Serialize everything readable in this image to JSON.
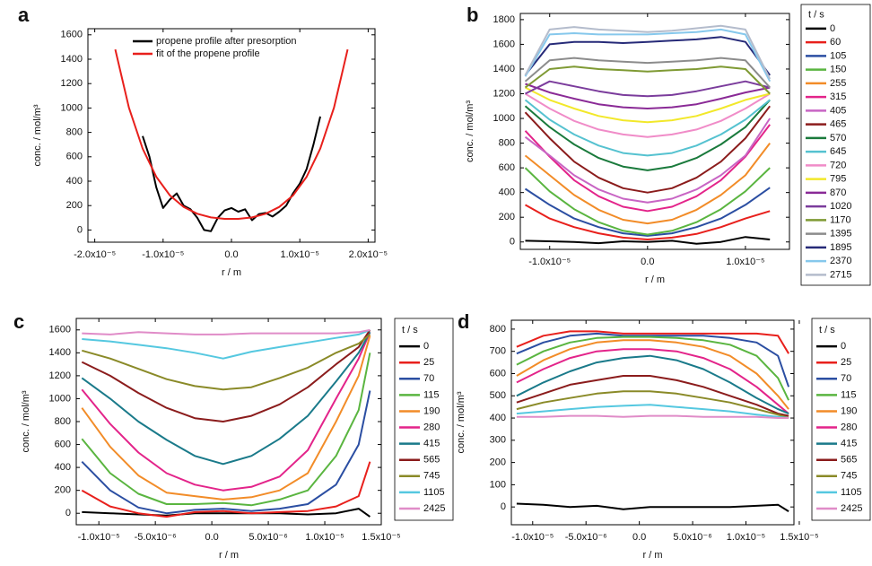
{
  "chart_data": [
    {
      "type": "line",
      "label": "a",
      "xlabel": "r / m",
      "ylabel": "conc. / mol/m³",
      "xlim": [
        -2.1e-05,
        2.1e-05
      ],
      "ylim": [
        -100,
        1650
      ],
      "xticks": [
        {
          "value": -2e-05,
          "label": "-2.0x10⁻⁵"
        },
        {
          "value": -1e-05,
          "label": "-1.0x10⁻⁵"
        },
        {
          "value": 0,
          "label": "0.0"
        },
        {
          "value": 1e-05,
          "label": "1.0x10⁻⁵"
        },
        {
          "value": 2e-05,
          "label": "2.0x10⁻⁵"
        }
      ],
      "yticks": [
        0,
        200,
        400,
        600,
        800,
        1000,
        1200,
        1400,
        1600
      ],
      "legend": "upper center",
      "series": [
        {
          "name": "propene profile after presorption",
          "color": "#000000",
          "x": [
            -1.3e-05,
            -1.2e-05,
            -1.1e-05,
            -1e-05,
            -9e-06,
            -8e-06,
            -7e-06,
            -6e-06,
            -5e-06,
            -4e-06,
            -3e-06,
            -2e-06,
            -1e-06,
            0,
            1e-06,
            2e-06,
            3e-06,
            4e-06,
            5e-06,
            6e-06,
            7e-06,
            8e-06,
            9e-06,
            1e-05,
            1.1e-05,
            1.2e-05,
            1.3e-05
          ],
          "values": [
            770,
            600,
            350,
            180,
            250,
            300,
            200,
            170,
            100,
            0,
            -10,
            100,
            160,
            180,
            150,
            170,
            80,
            130,
            140,
            110,
            150,
            200,
            300,
            380,
            500,
            700,
            930
          ]
        },
        {
          "name": "fit of the propene profile",
          "color": "#e8201c",
          "x": [
            -1.7e-05,
            -1.5e-05,
            -1.3e-05,
            -1.1e-05,
            -9e-06,
            -7e-06,
            -5e-06,
            -3e-06,
            -1e-06,
            1e-06,
            3e-06,
            5e-06,
            7e-06,
            9e-06,
            1.1e-05,
            1.3e-05,
            1.5e-05,
            1.7e-05
          ],
          "values": [
            1480,
            1003,
            667,
            436,
            283,
            189,
            133,
            103,
            91,
            91,
            103,
            133,
            189,
            283,
            436,
            667,
            1003,
            1480
          ]
        }
      ]
    },
    {
      "type": "line",
      "label": "b",
      "xlabel": "r / m",
      "ylabel": "conc. / mol/m³",
      "xlim": [
        -1.3e-05,
        1.45e-05
      ],
      "ylim": [
        -60,
        1850
      ],
      "xticks": [
        {
          "value": -1e-05,
          "label": "-1.0x10⁻⁵"
        },
        {
          "value": 0,
          "label": "0.0"
        },
        {
          "value": 1e-05,
          "label": "1.0x10⁻⁵"
        }
      ],
      "yticks": [
        0,
        200,
        400,
        600,
        800,
        1000,
        1200,
        1400,
        1600,
        1800
      ],
      "legend": "right",
      "legend_title": "t / s",
      "x": [
        -1.25e-05,
        -1e-05,
        -7.5e-06,
        -5e-06,
        -2.5e-06,
        0,
        2.5e-06,
        5e-06,
        7.5e-06,
        1e-05,
        1.25e-05
      ],
      "series": [
        {
          "name": "0",
          "color": "#000000",
          "values": [
            10,
            5,
            0,
            -10,
            5,
            0,
            10,
            -15,
            0,
            40,
            20
          ]
        },
        {
          "name": "60",
          "color": "#e8201c",
          "values": [
            300,
            190,
            120,
            70,
            35,
            20,
            35,
            65,
            120,
            190,
            250
          ]
        },
        {
          "name": "105",
          "color": "#2b4ea2",
          "values": [
            430,
            300,
            190,
            120,
            70,
            50,
            70,
            120,
            190,
            300,
            440
          ]
        },
        {
          "name": "150",
          "color": "#5ab540",
          "values": [
            600,
            410,
            265,
            160,
            90,
            60,
            90,
            160,
            265,
            410,
            600
          ]
        },
        {
          "name": "255",
          "color": "#f28c28",
          "values": [
            700,
            540,
            380,
            260,
            180,
            150,
            180,
            260,
            380,
            540,
            800
          ]
        },
        {
          "name": "315",
          "color": "#e3248a",
          "values": [
            900,
            690,
            500,
            370,
            285,
            250,
            285,
            370,
            500,
            690,
            950
          ]
        },
        {
          "name": "405",
          "color": "#c865c4",
          "values": [
            850,
            700,
            540,
            425,
            350,
            320,
            350,
            425,
            540,
            700,
            1000
          ]
        },
        {
          "name": "465",
          "color": "#8b1c1c",
          "values": [
            1050,
            840,
            650,
            520,
            435,
            400,
            435,
            520,
            650,
            840,
            1100
          ]
        },
        {
          "name": "570",
          "color": "#1a7a3c",
          "values": [
            1100,
            930,
            790,
            680,
            610,
            580,
            610,
            680,
            790,
            930,
            1150
          ]
        },
        {
          "name": "645",
          "color": "#55c2d0",
          "values": [
            1150,
            990,
            870,
            780,
            720,
            700,
            720,
            780,
            870,
            990,
            1150
          ]
        },
        {
          "name": "720",
          "color": "#f08cc8",
          "values": [
            1200,
            1080,
            980,
            910,
            870,
            850,
            870,
            910,
            980,
            1080,
            1200
          ]
        },
        {
          "name": "795",
          "color": "#f2e82a",
          "values": [
            1250,
            1150,
            1080,
            1020,
            985,
            970,
            985,
            1020,
            1080,
            1150,
            1200
          ]
        },
        {
          "name": "870",
          "color": "#8a2a96",
          "values": [
            1280,
            1210,
            1160,
            1115,
            1090,
            1080,
            1090,
            1115,
            1160,
            1210,
            1250
          ]
        },
        {
          "name": "1020",
          "color": "#7b3c9c",
          "values": [
            1200,
            1300,
            1260,
            1220,
            1190,
            1180,
            1190,
            1220,
            1260,
            1300,
            1250
          ]
        },
        {
          "name": "1170",
          "color": "#7f9a34",
          "values": [
            1250,
            1400,
            1420,
            1400,
            1390,
            1380,
            1390,
            1400,
            1420,
            1400,
            1200
          ]
        },
        {
          "name": "1395",
          "color": "#8c8c8c",
          "values": [
            1300,
            1470,
            1490,
            1470,
            1460,
            1450,
            1460,
            1470,
            1490,
            1470,
            1250
          ]
        },
        {
          "name": "1895",
          "color": "#262a78",
          "values": [
            1350,
            1600,
            1620,
            1620,
            1610,
            1620,
            1630,
            1640,
            1660,
            1620,
            1350
          ]
        },
        {
          "name": "2370",
          "color": "#86c8ec",
          "values": [
            1340,
            1680,
            1690,
            1680,
            1680,
            1680,
            1690,
            1700,
            1720,
            1680,
            1300
          ]
        },
        {
          "name": "2715",
          "color": "#b4bccc",
          "values": [
            1350,
            1720,
            1740,
            1720,
            1710,
            1700,
            1710,
            1730,
            1750,
            1720,
            1320
          ]
        }
      ]
    },
    {
      "type": "line",
      "label": "c",
      "xlabel": "r / m",
      "ylabel": "conc. / mol/m³",
      "xlim": [
        -1.2e-05,
        1.5e-05
      ],
      "ylim": [
        -100,
        1700
      ],
      "xticks": [
        {
          "value": -1e-05,
          "label": "-1.0x10⁻⁵"
        },
        {
          "value": -5e-06,
          "label": "-5.0x10⁻⁶"
        },
        {
          "value": 0,
          "label": "0.0"
        },
        {
          "value": 5e-06,
          "label": "5.0x10⁻⁶"
        },
        {
          "value": 1e-05,
          "label": "1.0x10⁻⁵"
        },
        {
          "value": 1.5e-05,
          "label": "1.5x10⁻⁵"
        }
      ],
      "yticks": [
        0,
        200,
        400,
        600,
        800,
        1000,
        1200,
        1400,
        1600
      ],
      "legend": "right",
      "legend_title": "t / s",
      "x": [
        -1.15e-05,
        -9e-06,
        -6.5e-06,
        -4e-06,
        -1.5e-06,
        1e-06,
        3.5e-06,
        6e-06,
        8.5e-06,
        1.1e-05,
        1.3e-05,
        1.4e-05
      ],
      "series": [
        {
          "name": "0",
          "color": "#000000",
          "values": [
            10,
            0,
            -10,
            -20,
            0,
            0,
            0,
            0,
            -10,
            0,
            40,
            -30
          ]
        },
        {
          "name": "25",
          "color": "#e8201c",
          "values": [
            200,
            60,
            0,
            -30,
            10,
            20,
            0,
            10,
            20,
            60,
            150,
            450
          ]
        },
        {
          "name": "70",
          "color": "#2b4ea2",
          "values": [
            450,
            200,
            50,
            0,
            30,
            40,
            20,
            40,
            80,
            250,
            600,
            1070
          ]
        },
        {
          "name": "115",
          "color": "#5ab540",
          "values": [
            650,
            350,
            170,
            80,
            80,
            90,
            70,
            120,
            200,
            500,
            900,
            1400
          ]
        },
        {
          "name": "190",
          "color": "#f28c28",
          "values": [
            920,
            580,
            330,
            180,
            150,
            120,
            140,
            200,
            350,
            800,
            1200,
            1550
          ]
        },
        {
          "name": "280",
          "color": "#e3248a",
          "values": [
            1080,
            780,
            530,
            350,
            250,
            200,
            230,
            320,
            550,
            1000,
            1350,
            1580
          ]
        },
        {
          "name": "415",
          "color": "#1a7a8a",
          "values": [
            1180,
            1000,
            800,
            640,
            500,
            430,
            500,
            650,
            850,
            1150,
            1400,
            1580
          ]
        },
        {
          "name": "565",
          "color": "#8b1c1c",
          "values": [
            1320,
            1200,
            1050,
            920,
            830,
            800,
            850,
            950,
            1100,
            1300,
            1450,
            1600
          ]
        },
        {
          "name": "745",
          "color": "#8a8a28",
          "values": [
            1420,
            1350,
            1260,
            1170,
            1110,
            1080,
            1100,
            1180,
            1270,
            1400,
            1480,
            1560
          ]
        },
        {
          "name": "1105",
          "color": "#55c8e0",
          "values": [
            1520,
            1500,
            1470,
            1440,
            1400,
            1350,
            1410,
            1450,
            1490,
            1530,
            1560,
            1600
          ]
        },
        {
          "name": "2425",
          "color": "#e08cc8",
          "values": [
            1570,
            1560,
            1580,
            1570,
            1560,
            1560,
            1570,
            1570,
            1570,
            1570,
            1580,
            1600
          ]
        }
      ]
    },
    {
      "type": "line",
      "label": "d",
      "xlabel": "r / m",
      "ylabel": "conc. / mol/m³",
      "xlim": [
        -1.2e-05,
        1.45e-05
      ],
      "ylim": [
        -80,
        840
      ],
      "xticks": [
        {
          "value": -1e-05,
          "label": "-1.0x10⁻⁵"
        },
        {
          "value": -5e-06,
          "label": "-5.0x10⁻⁶"
        },
        {
          "value": 0,
          "label": "0.0"
        },
        {
          "value": 5e-06,
          "label": "5.0x10⁻⁶"
        },
        {
          "value": 1e-05,
          "label": "1.0x10⁻⁵"
        },
        {
          "value": 1.5e-05,
          "label": "1.5x10⁻⁵"
        }
      ],
      "yticks": [
        0,
        100,
        200,
        300,
        400,
        500,
        600,
        700,
        800
      ],
      "legend": "right",
      "legend_title": "t / s",
      "x": [
        -1.15e-05,
        -9e-06,
        -6.5e-06,
        -4e-06,
        -1.5e-06,
        1e-06,
        3.5e-06,
        6e-06,
        8.5e-06,
        1.1e-05,
        1.3e-05,
        1.4e-05
      ],
      "series": [
        {
          "name": "0",
          "color": "#000000",
          "values": [
            15,
            10,
            0,
            5,
            -10,
            0,
            0,
            0,
            0,
            5,
            10,
            -20
          ]
        },
        {
          "name": "25",
          "color": "#e8201c",
          "values": [
            720,
            770,
            790,
            790,
            780,
            780,
            780,
            780,
            780,
            780,
            770,
            690
          ]
        },
        {
          "name": "70",
          "color": "#2b4ea2",
          "values": [
            690,
            740,
            770,
            780,
            770,
            770,
            770,
            770,
            760,
            740,
            680,
            540
          ]
        },
        {
          "name": "115",
          "color": "#5ab540",
          "values": [
            640,
            700,
            740,
            760,
            765,
            765,
            760,
            750,
            730,
            680,
            580,
            480
          ]
        },
        {
          "name": "190",
          "color": "#f28c28",
          "values": [
            590,
            660,
            710,
            740,
            750,
            750,
            740,
            720,
            680,
            600,
            500,
            440
          ]
        },
        {
          "name": "280",
          "color": "#e3248a",
          "values": [
            560,
            620,
            670,
            700,
            710,
            710,
            700,
            670,
            620,
            540,
            460,
            420
          ]
        },
        {
          "name": "415",
          "color": "#1a7a8a",
          "values": [
            500,
            560,
            610,
            650,
            670,
            680,
            660,
            620,
            560,
            490,
            440,
            420
          ]
        },
        {
          "name": "565",
          "color": "#8b1c1c",
          "values": [
            470,
            510,
            550,
            570,
            590,
            590,
            570,
            540,
            500,
            460,
            420,
            410
          ]
        },
        {
          "name": "745",
          "color": "#8a8a28",
          "values": [
            440,
            470,
            490,
            510,
            520,
            520,
            510,
            490,
            470,
            440,
            415,
            400
          ]
        },
        {
          "name": "1105",
          "color": "#55c8e0",
          "values": [
            420,
            430,
            440,
            450,
            455,
            460,
            450,
            440,
            430,
            415,
            405,
            400
          ]
        },
        {
          "name": "2425",
          "color": "#e08cc8",
          "values": [
            405,
            405,
            410,
            410,
            405,
            410,
            410,
            405,
            405,
            405,
            400,
            400
          ]
        }
      ]
    }
  ]
}
